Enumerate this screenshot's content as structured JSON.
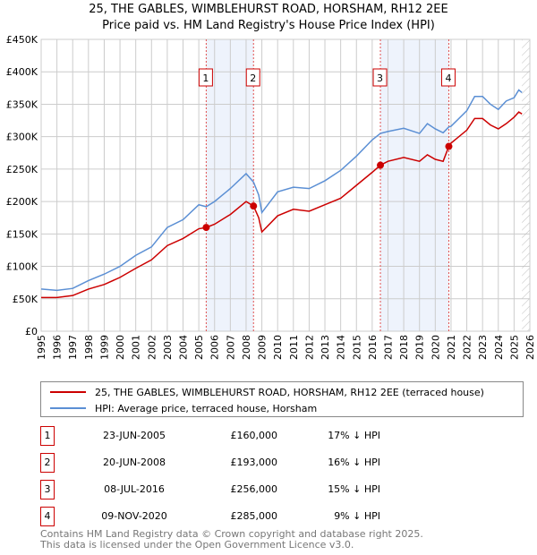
{
  "chart_data": {
    "type": "line",
    "title": "25, THE GABLES, WIMBLEHURST ROAD, HORSHAM, RH12 2EE",
    "subtitle": "Price paid vs. HM Land Registry's House Price Index (HPI)",
    "xlim": [
      1995,
      2026
    ],
    "ylim": [
      0,
      450000
    ],
    "y_ticks": [
      {
        "v": 0,
        "l": "£0"
      },
      {
        "v": 50000,
        "l": "£50K"
      },
      {
        "v": 100000,
        "l": "£100K"
      },
      {
        "v": 150000,
        "l": "£150K"
      },
      {
        "v": 200000,
        "l": "£200K"
      },
      {
        "v": 250000,
        "l": "£250K"
      },
      {
        "v": 300000,
        "l": "£300K"
      },
      {
        "v": 350000,
        "l": "£350K"
      },
      {
        "v": 400000,
        "l": "£400K"
      },
      {
        "v": 450000,
        "l": "£450K"
      }
    ],
    "x_ticks": [
      "1995",
      "1996",
      "1997",
      "1998",
      "1999",
      "2000",
      "2001",
      "2002",
      "2003",
      "2004",
      "2005",
      "2006",
      "2007",
      "2008",
      "2009",
      "2010",
      "2011",
      "2012",
      "2013",
      "2014",
      "2015",
      "2016",
      "2017",
      "2018",
      "2019",
      "2020",
      "2021",
      "2022",
      "2023",
      "2024",
      "2025",
      "2026"
    ],
    "grid": true,
    "series": [
      {
        "name": "25, THE GABLES, WIMBLEHURST ROAD, HORSHAM, RH12 2EE (terraced house)",
        "color": "#cc0000",
        "points": [
          [
            1995,
            52000
          ],
          [
            1996,
            52000
          ],
          [
            1997,
            55000
          ],
          [
            1998,
            65000
          ],
          [
            1999,
            72000
          ],
          [
            2000,
            83000
          ],
          [
            2001,
            97000
          ],
          [
            2002,
            110000
          ],
          [
            2003,
            132000
          ],
          [
            2004,
            143000
          ],
          [
            2005,
            158000
          ],
          [
            2005.47,
            160000
          ],
          [
            2006,
            165000
          ],
          [
            2007,
            180000
          ],
          [
            2008,
            200000
          ],
          [
            2008.47,
            193000
          ],
          [
            2008.8,
            175000
          ],
          [
            2009.0,
            153000
          ],
          [
            2010,
            178000
          ],
          [
            2011,
            188000
          ],
          [
            2012,
            185000
          ],
          [
            2013,
            195000
          ],
          [
            2014,
            205000
          ],
          [
            2015,
            225000
          ],
          [
            2016,
            245000
          ],
          [
            2016.52,
            256000
          ],
          [
            2017,
            262000
          ],
          [
            2018,
            268000
          ],
          [
            2019,
            262000
          ],
          [
            2019.5,
            272000
          ],
          [
            2020,
            265000
          ],
          [
            2020.5,
            262000
          ],
          [
            2020.86,
            285000
          ],
          [
            2021,
            290000
          ],
          [
            2022,
            310000
          ],
          [
            2022.5,
            328000
          ],
          [
            2023,
            328000
          ],
          [
            2023.5,
            318000
          ],
          [
            2024,
            312000
          ],
          [
            2024.5,
            320000
          ],
          [
            2025,
            330000
          ],
          [
            2025.3,
            338000
          ],
          [
            2025.5,
            335000
          ]
        ]
      },
      {
        "name": "HPI: Average price, terraced house, Horsham",
        "color": "#5b8fd4",
        "points": [
          [
            1995,
            65000
          ],
          [
            1996,
            63000
          ],
          [
            1997,
            66000
          ],
          [
            1998,
            78000
          ],
          [
            1999,
            88000
          ],
          [
            2000,
            100000
          ],
          [
            2001,
            117000
          ],
          [
            2002,
            130000
          ],
          [
            2003,
            160000
          ],
          [
            2004,
            172000
          ],
          [
            2005,
            195000
          ],
          [
            2005.47,
            192000
          ],
          [
            2006,
            200000
          ],
          [
            2007,
            220000
          ],
          [
            2008,
            243000
          ],
          [
            2008.47,
            230000
          ],
          [
            2008.8,
            210000
          ],
          [
            2009.0,
            183000
          ],
          [
            2010,
            215000
          ],
          [
            2011,
            222000
          ],
          [
            2012,
            220000
          ],
          [
            2013,
            232000
          ],
          [
            2014,
            248000
          ],
          [
            2015,
            270000
          ],
          [
            2016,
            295000
          ],
          [
            2016.52,
            305000
          ],
          [
            2017,
            308000
          ],
          [
            2018,
            313000
          ],
          [
            2019,
            305000
          ],
          [
            2019.5,
            320000
          ],
          [
            2020,
            312000
          ],
          [
            2020.5,
            306000
          ],
          [
            2020.86,
            315000
          ],
          [
            2021,
            316000
          ],
          [
            2022,
            340000
          ],
          [
            2022.5,
            362000
          ],
          [
            2023,
            362000
          ],
          [
            2023.5,
            350000
          ],
          [
            2024,
            342000
          ],
          [
            2024.5,
            355000
          ],
          [
            2025,
            360000
          ],
          [
            2025.3,
            372000
          ],
          [
            2025.5,
            368000
          ]
        ]
      }
    ],
    "sales": [
      {
        "n": "1",
        "x": 2005.47,
        "date": "23-JUN-2005",
        "price": 160000,
        "price_label": "£160,000",
        "hpi": "17% ↓ HPI"
      },
      {
        "n": "2",
        "x": 2008.47,
        "date": "20-JUN-2008",
        "price": 193000,
        "price_label": "£193,000",
        "hpi": "16% ↓ HPI"
      },
      {
        "n": "3",
        "x": 2016.52,
        "date": "08-JUL-2016",
        "price": 256000,
        "price_label": "£256,000",
        "hpi": "15% ↓ HPI"
      },
      {
        "n": "4",
        "x": 2020.86,
        "date": "09-NOV-2020",
        "price": 285000,
        "price_label": "£285,000",
        "hpi": "9% ↓ HPI"
      }
    ],
    "shaded_ranges": [
      [
        2005.47,
        2008.47
      ],
      [
        2016.52,
        2020.86
      ]
    ],
    "hatched_from": 2025.5,
    "legend_position": "below"
  },
  "footer": {
    "line1": "Contains HM Land Registry data © Crown copyright and database right 2025.",
    "line2": "This data is licensed under the Open Government Licence v3.0."
  }
}
